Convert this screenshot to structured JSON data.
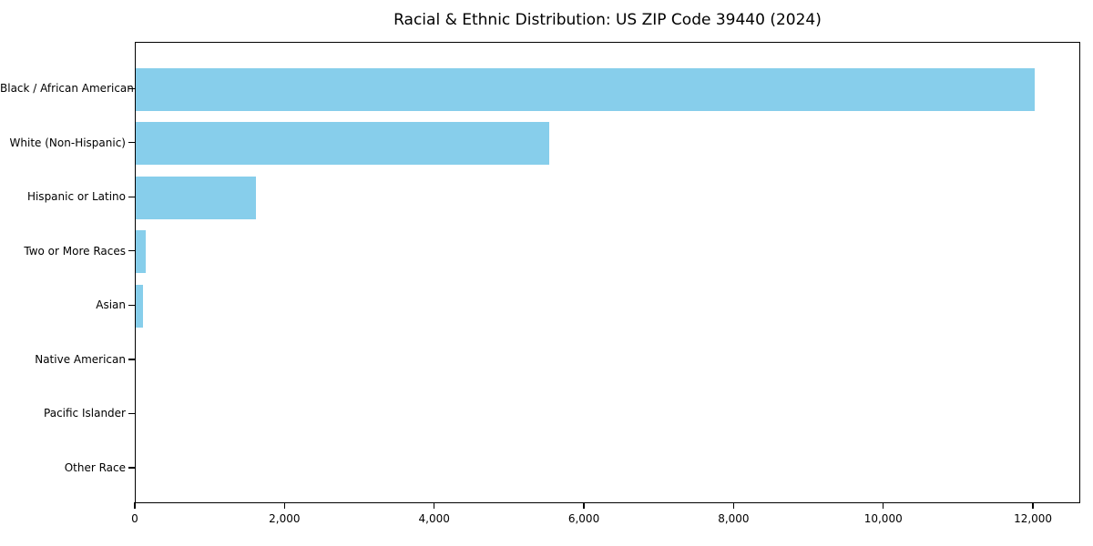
{
  "chart_data": {
    "type": "bar",
    "orientation": "horizontal",
    "title": "Racial & Ethnic Distribution: US ZIP Code 39440 (2024)",
    "xlabel": "",
    "ylabel": "",
    "categories": [
      "Black / African American",
      "White (Non-Hispanic)",
      "Hispanic or Latino",
      "Two or More Races",
      "Asian",
      "Native American",
      "Pacific Islander",
      "Other Race"
    ],
    "values": [
      12030,
      5540,
      1610,
      130,
      100,
      0,
      0,
      0
    ],
    "x_ticks": [
      {
        "value": 0,
        "label": "0"
      },
      {
        "value": 2000,
        "label": "2,000"
      },
      {
        "value": 4000,
        "label": "4,000"
      },
      {
        "value": 6000,
        "label": "6,000"
      },
      {
        "value": 8000,
        "label": "8,000"
      },
      {
        "value": 10000,
        "label": "10,000"
      },
      {
        "value": 12000,
        "label": "12,000"
      }
    ],
    "xlim": [
      0,
      12632
    ],
    "grid": false,
    "legend": null,
    "bar_color": "#87ceeb",
    "spine_color": "#000000",
    "background_color": "#ffffff",
    "text_color": "#000000"
  }
}
